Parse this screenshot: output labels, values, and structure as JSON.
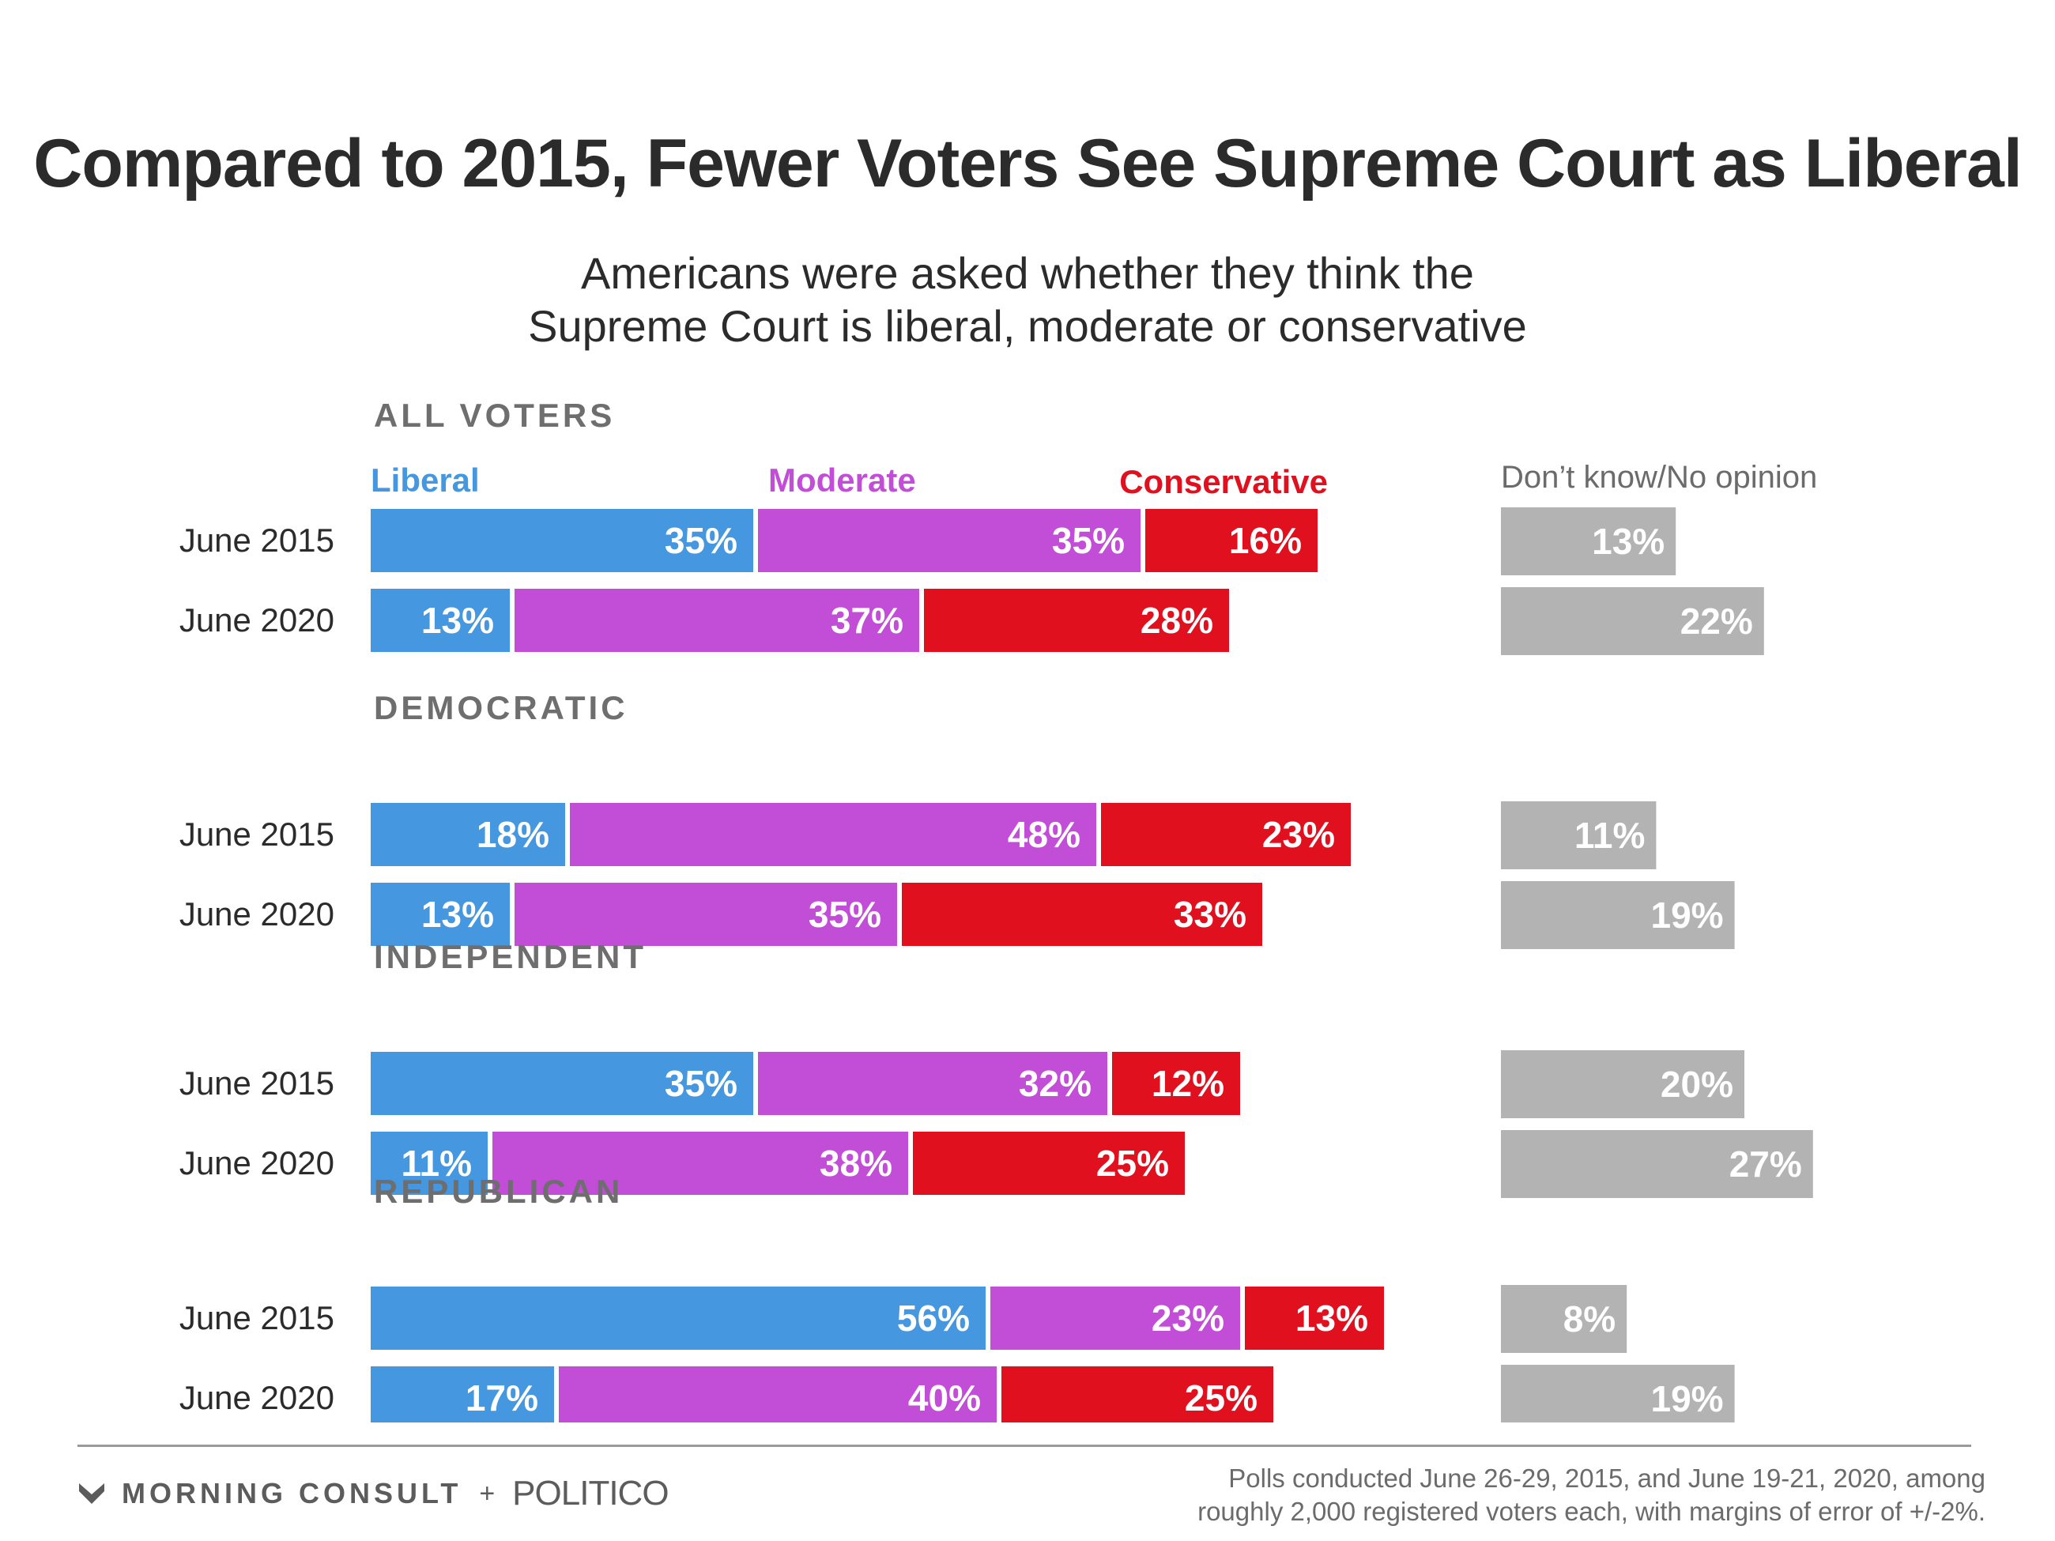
{
  "chart_data": {
    "type": "bar",
    "title": "Compared to 2015, Fewer Voters See Supreme Court as Liberal",
    "subtitle_lines": [
      "Americans were asked whether they think the",
      "Supreme Court is liberal, moderate or conservative"
    ],
    "series": [
      {
        "name": "Liberal",
        "color": "#4597df"
      },
      {
        "name": "Moderate",
        "color": "#c24ed8"
      },
      {
        "name": "Conservative",
        "color": "#e0101f"
      },
      {
        "name": "Don’t know/No opinion",
        "color": "#b3b3b3"
      }
    ],
    "groups": [
      {
        "name": "ALL VOTERS",
        "rows": [
          {
            "label": "June 2015",
            "values": [
              35,
              35,
              16,
              13
            ]
          },
          {
            "label": "June 2020",
            "values": [
              13,
              37,
              28,
              22
            ]
          }
        ]
      },
      {
        "name": "DEMOCRATIC",
        "rows": [
          {
            "label": "June 2015",
            "values": [
              18,
              48,
              23,
              11
            ]
          },
          {
            "label": "June 2020",
            "values": [
              13,
              35,
              33,
              19
            ]
          }
        ]
      },
      {
        "name": "INDEPENDENT",
        "rows": [
          {
            "label": "June 2015",
            "values": [
              35,
              32,
              12,
              20
            ]
          },
          {
            "label": "June 2020",
            "values": [
              11,
              38,
              25,
              27
            ]
          }
        ]
      },
      {
        "name": "REPUBLICAN",
        "rows": [
          {
            "label": "June 2015",
            "values": [
              56,
              23,
              13,
              8
            ]
          },
          {
            "label": "June 2020",
            "values": [
              17,
              40,
              25,
              19
            ]
          }
        ]
      }
    ],
    "value_suffix": "%"
  },
  "footer": {
    "brand": "MORNING CONSULT",
    "plus": "+",
    "partner": "POLITICO",
    "note_lines": [
      "Polls conducted June 26-29, 2015, and June 19-21, 2020, among",
      "roughly 2,000 registered voters each, with margins of error of +/-2%."
    ]
  }
}
